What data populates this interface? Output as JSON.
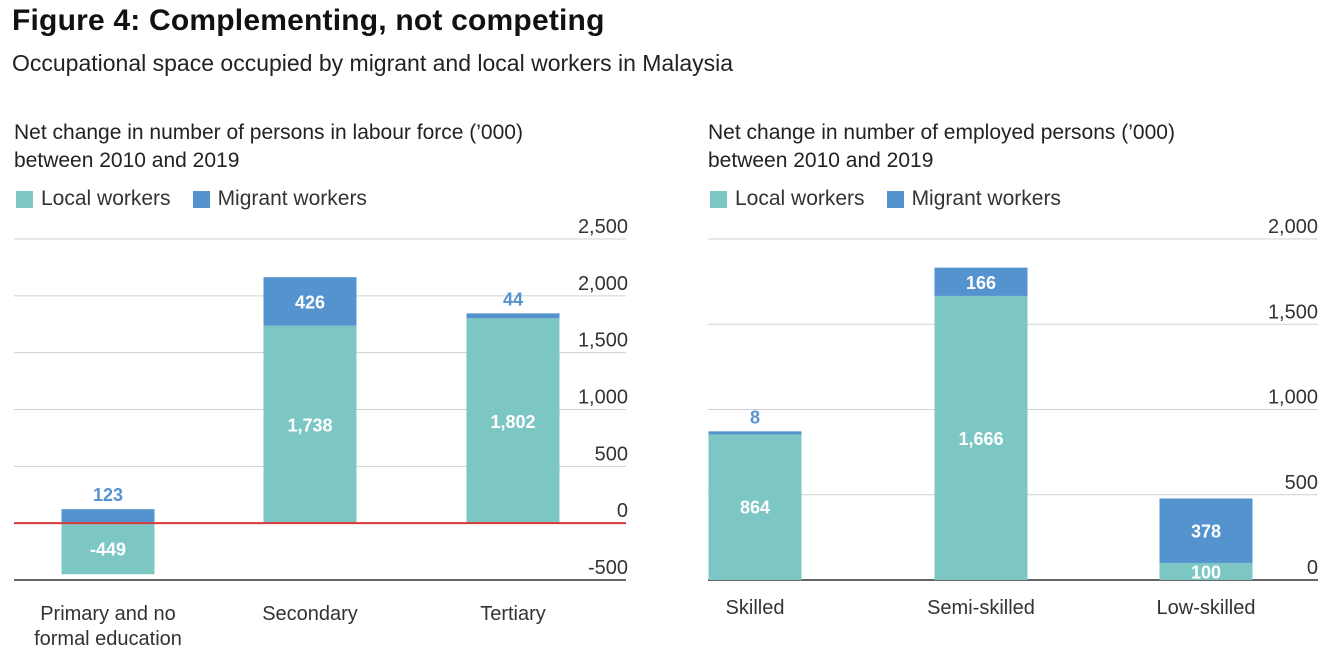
{
  "figure": {
    "title": "Figure 4: Complementing, not competing",
    "subtitle": "Occupational space occupied by migrant and local workers in Malaysia"
  },
  "colors": {
    "local": "#7cc6c4",
    "migrant": "#5593cf",
    "zero_line": "#d9373a",
    "grid": "#d0d0d0",
    "migrant_label": "#5593cf"
  },
  "chart_data": [
    {
      "type": "bar",
      "stacked": true,
      "title": "Net change in number of persons in labour force (’000) between 2010 and 2019",
      "title_lines": [
        "Net change in number of persons in labour force (’000)",
        "between 2010 and 2019"
      ],
      "categories": [
        "Primary and no formal education",
        "Secondary",
        "Tertiary"
      ],
      "category_lines": [
        [
          "Primary and no",
          "formal education"
        ],
        [
          "Secondary"
        ],
        [
          "Tertiary"
        ]
      ],
      "series": [
        {
          "name": "Local workers",
          "values": [
            -449,
            1738,
            1802
          ],
          "labels": [
            "-449",
            "1,738",
            "1,802"
          ]
        },
        {
          "name": "Migrant workers",
          "values": [
            123,
            426,
            44
          ],
          "labels": [
            "123",
            "426",
            "44"
          ]
        }
      ],
      "ylim": [
        -500,
        2500
      ],
      "yticks": [
        -500,
        0,
        500,
        1000,
        1500,
        2000,
        2500
      ],
      "ytick_labels": [
        "-500",
        "0",
        "500",
        "1,000",
        "1,500",
        "2,000",
        "2,500"
      ],
      "axis_position": "right",
      "grid": true,
      "legend": "top-left"
    },
    {
      "type": "bar",
      "stacked": true,
      "title": "Net change in number of employed persons (’000) between 2010 and 2019",
      "title_lines": [
        "Net change in number of employed persons (’000)",
        "between 2010 and 2019"
      ],
      "categories": [
        "Skilled",
        "Semi-skilled",
        "Low-skilled"
      ],
      "category_lines": [
        [
          "Skilled"
        ],
        [
          "Semi-skilled"
        ],
        [
          "Low-skilled"
        ]
      ],
      "series": [
        {
          "name": "Local workers",
          "values": [
            864,
            1666,
            100
          ],
          "labels": [
            "864",
            "1,666",
            "100"
          ]
        },
        {
          "name": "Migrant workers",
          "values": [
            8,
            166,
            378
          ],
          "labels": [
            "8",
            "166",
            "378"
          ]
        }
      ],
      "ylim": [
        0,
        2000
      ],
      "yticks": [
        0,
        500,
        1000,
        1500,
        2000
      ],
      "ytick_labels": [
        "0",
        "500",
        "1,000",
        "1,500",
        "2,000"
      ],
      "axis_position": "right",
      "grid": true,
      "legend": "top-left"
    }
  ]
}
